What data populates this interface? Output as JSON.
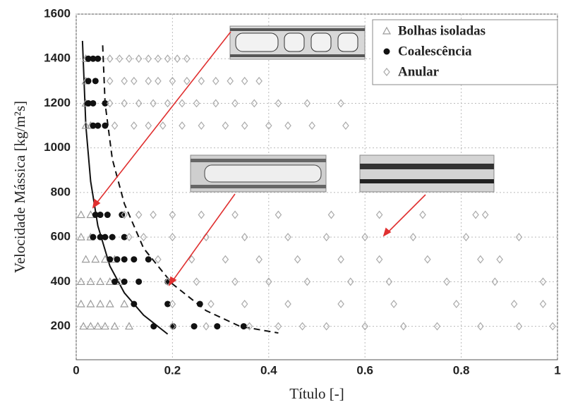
{
  "chart_data": {
    "type": "scatter",
    "xlabel": "Título [-]",
    "ylabel": "Velocidade Mássica [kg/m²s]",
    "xlim": [
      0,
      1
    ],
    "ylim": [
      50,
      1600
    ],
    "xticks": [
      0,
      0.2,
      0.4,
      0.6,
      0.8,
      1
    ],
    "yticks": [
      200,
      400,
      600,
      800,
      1000,
      1200,
      1400,
      1600
    ],
    "grid": true,
    "legend": "upper right",
    "series": [
      {
        "name": "Bolhas isoladas",
        "color": "#9a9a9a",
        "marker": "triangle",
        "x": [
          0.015,
          0.03,
          0.045,
          0.06,
          0.08,
          0.11,
          0.01,
          0.03,
          0.05,
          0.07,
          0.1,
          0.01,
          0.03,
          0.05,
          0.07,
          0.09,
          0.02,
          0.04,
          0.06,
          0.08,
          0.01,
          0.03,
          0.01,
          0.03,
          0.02,
          0.03,
          0.02,
          0.02,
          0.02
        ],
        "y": [
          200,
          200,
          200,
          200,
          200,
          200,
          300,
          300,
          300,
          300,
          300,
          400,
          400,
          400,
          400,
          400,
          500,
          500,
          500,
          500,
          600,
          600,
          700,
          700,
          1100,
          1100,
          1200,
          1300,
          1400
        ]
      },
      {
        "name": "Coalescência",
        "color": "#111111",
        "marker": "circle",
        "x": [
          0.025,
          0.035,
          0.045,
          0.025,
          0.04,
          0.025,
          0.035,
          0.06,
          0.035,
          0.045,
          0.06,
          0.04,
          0.05,
          0.065,
          0.095,
          0.035,
          0.05,
          0.06,
          0.075,
          0.1,
          0.07,
          0.085,
          0.1,
          0.12,
          0.15,
          0.08,
          0.1,
          0.13,
          0.19,
          0.12,
          0.19,
          0.257,
          0.161,
          0.201,
          0.245,
          0.293,
          0.348
        ],
        "y": [
          1400,
          1400,
          1400,
          1300,
          1300,
          1200,
          1200,
          1200,
          1100,
          1100,
          1100,
          700,
          700,
          700,
          700,
          600,
          600,
          600,
          600,
          600,
          500,
          500,
          500,
          500,
          500,
          400,
          400,
          400,
          400,
          300,
          300,
          300,
          200,
          200,
          200,
          200,
          200
        ]
      },
      {
        "name": "Anular",
        "color": "#aaaaaa",
        "marker": "diamond",
        "x": [
          0.07,
          0.09,
          0.11,
          0.13,
          0.15,
          0.17,
          0.19,
          0.21,
          0.23,
          0.07,
          0.1,
          0.12,
          0.15,
          0.17,
          0.2,
          0.23,
          0.26,
          0.29,
          0.32,
          0.35,
          0.38,
          0.07,
          0.1,
          0.13,
          0.16,
          0.19,
          0.22,
          0.25,
          0.29,
          0.33,
          0.37,
          0.42,
          0.48,
          0.55,
          0.08,
          0.12,
          0.15,
          0.18,
          0.22,
          0.26,
          0.31,
          0.35,
          0.4,
          0.44,
          0.49,
          0.56,
          0.1,
          0.13,
          0.16,
          0.2,
          0.26,
          0.33,
          0.42,
          0.53,
          0.63,
          0.72,
          0.83,
          0.85,
          0.11,
          0.14,
          0.2,
          0.27,
          0.35,
          0.44,
          0.52,
          0.6,
          0.7,
          0.81,
          0.92,
          0.17,
          0.24,
          0.31,
          0.38,
          0.46,
          0.55,
          0.63,
          0.73,
          0.84,
          0.88,
          0.19,
          0.25,
          0.33,
          0.4,
          0.48,
          0.57,
          0.65,
          0.77,
          0.87,
          0.97,
          0.2,
          0.28,
          0.35,
          0.44,
          0.55,
          0.66,
          0.79,
          0.91,
          0.97,
          0.2,
          0.27,
          0.36,
          0.42,
          0.47,
          0.52,
          0.6,
          0.68,
          0.75,
          0.84,
          0.92,
          0.99
        ],
        "y": [
          1400,
          1400,
          1400,
          1400,
          1400,
          1400,
          1400,
          1400,
          1400,
          1300,
          1300,
          1300,
          1300,
          1300,
          1300,
          1300,
          1300,
          1300,
          1300,
          1300,
          1300,
          1200,
          1200,
          1200,
          1200,
          1200,
          1200,
          1200,
          1200,
          1200,
          1200,
          1200,
          1200,
          1200,
          1100,
          1100,
          1100,
          1100,
          1100,
          1100,
          1100,
          1100,
          1100,
          1100,
          1100,
          1100,
          700,
          700,
          700,
          700,
          700,
          700,
          700,
          700,
          700,
          700,
          700,
          700,
          600,
          600,
          600,
          600,
          600,
          600,
          600,
          600,
          600,
          600,
          600,
          500,
          500,
          500,
          500,
          500,
          500,
          500,
          500,
          500,
          500,
          400,
          400,
          400,
          400,
          400,
          400,
          400,
          400,
          400,
          400,
          300,
          300,
          300,
          300,
          300,
          300,
          300,
          300,
          300,
          200,
          200,
          200,
          200,
          200,
          200,
          200,
          200,
          200,
          200,
          200,
          200
        ]
      }
    ],
    "transition_lines": [
      {
        "style": "solid",
        "color": "#111111",
        "x": [
          0.013,
          0.02,
          0.03,
          0.045,
          0.07,
          0.1,
          0.14,
          0.19
        ],
        "y": [
          1480,
          1100,
          850,
          650,
          470,
          350,
          250,
          165
        ]
      },
      {
        "style": "dashed",
        "color": "#111111",
        "x": [
          0.055,
          0.06,
          0.075,
          0.1,
          0.14,
          0.2,
          0.27,
          0.34,
          0.42
        ],
        "y": [
          1460,
          1200,
          950,
          750,
          550,
          390,
          270,
          200,
          170
        ]
      }
    ]
  }
}
